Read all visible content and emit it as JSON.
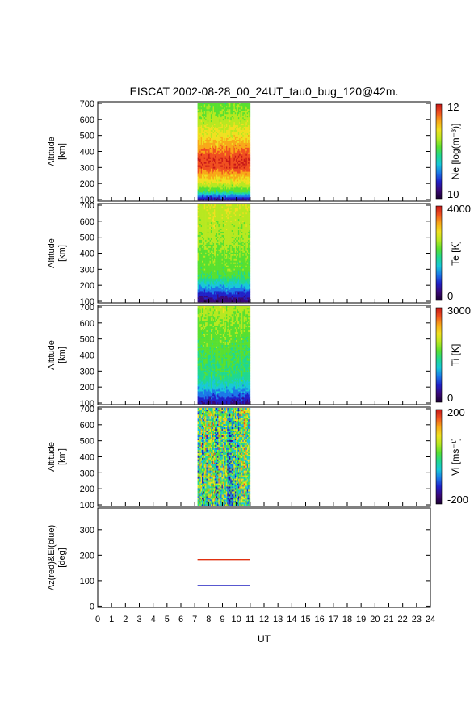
{
  "title": "EISCAT 2002-08-28_00_24UT_tau0_bug_120@42m.",
  "xaxis": {
    "label": "UT",
    "ticks": [
      "0",
      "1",
      "2",
      "3",
      "4",
      "5",
      "6",
      "7",
      "8",
      "9",
      "10",
      "11",
      "12",
      "13",
      "14",
      "15",
      "16",
      "17",
      "18",
      "19",
      "20",
      "21",
      "22",
      "23",
      "24"
    ],
    "range": [
      0,
      24
    ]
  },
  "chart_data": [
    {
      "type": "heatmap",
      "ylabel_line1": "Altitude",
      "ylabel_line2": "[km]",
      "yticks": [
        "100",
        "200",
        "300",
        "400",
        "500",
        "600",
        "700"
      ],
      "ylim": [
        90,
        710
      ],
      "data_x_range": [
        7.2,
        11.0
      ],
      "colorbar_label": "Ne [log(m⁻³)]",
      "colorbar_min": "10",
      "colorbar_max": "12",
      "colorbar_range": [
        10,
        12
      ],
      "profile": [
        {
          "alt": 100,
          "value": 10.2
        },
        {
          "alt": 150,
          "value": 11.0
        },
        {
          "alt": 200,
          "value": 11.35
        },
        {
          "alt": 250,
          "value": 11.6
        },
        {
          "alt": 300,
          "value": 11.85
        },
        {
          "alt": 350,
          "value": 11.9
        },
        {
          "alt": 400,
          "value": 11.75
        },
        {
          "alt": 500,
          "value": 11.45
        },
        {
          "alt": 600,
          "value": 11.25
        },
        {
          "alt": 700,
          "value": 11.1
        }
      ]
    },
    {
      "type": "heatmap",
      "ylabel_line1": "Altitude",
      "ylabel_line2": "[km]",
      "yticks": [
        "100",
        "200",
        "300",
        "400",
        "500",
        "600",
        "700"
      ],
      "ylim": [
        90,
        710
      ],
      "data_x_range": [
        7.2,
        11.0
      ],
      "colorbar_label": "Te [K]",
      "colorbar_min": "0",
      "colorbar_max": "4000",
      "colorbar_range": [
        0,
        4000
      ],
      "profile": [
        {
          "alt": 100,
          "value": 300
        },
        {
          "alt": 150,
          "value": 800
        },
        {
          "alt": 200,
          "value": 1400
        },
        {
          "alt": 250,
          "value": 2000
        },
        {
          "alt": 300,
          "value": 2200
        },
        {
          "alt": 400,
          "value": 2300
        },
        {
          "alt": 500,
          "value": 2450
        },
        {
          "alt": 600,
          "value": 2550
        },
        {
          "alt": 700,
          "value": 2650
        }
      ]
    },
    {
      "type": "heatmap",
      "ylabel_line1": "Altitude",
      "ylabel_line2": "[km]",
      "yticks": [
        "100",
        "200",
        "300",
        "400",
        "500",
        "600",
        "700"
      ],
      "ylim": [
        90,
        710
      ],
      "data_x_range": [
        7.2,
        11.0
      ],
      "colorbar_label": "Ti [K]",
      "colorbar_min": "0",
      "colorbar_max": "3000",
      "colorbar_range": [
        0,
        3000
      ],
      "profile": [
        {
          "alt": 100,
          "value": 350
        },
        {
          "alt": 150,
          "value": 750
        },
        {
          "alt": 200,
          "value": 1100
        },
        {
          "alt": 250,
          "value": 1350
        },
        {
          "alt": 300,
          "value": 1450
        },
        {
          "alt": 400,
          "value": 1550
        },
        {
          "alt": 500,
          "value": 1650
        },
        {
          "alt": 600,
          "value": 1750
        },
        {
          "alt": 700,
          "value": 1900
        }
      ]
    },
    {
      "type": "heatmap",
      "ylabel_line1": "Altitude",
      "ylabel_line2": "[km]",
      "yticks": [
        "100",
        "200",
        "300",
        "400",
        "500",
        "600",
        "700"
      ],
      "ylim": [
        90,
        710
      ],
      "data_x_range": [
        7.2,
        11.0
      ],
      "colorbar_label": "Vi [ms⁻¹]",
      "colorbar_min": "-200",
      "colorbar_max": "200",
      "colorbar_range": [
        -200,
        200
      ],
      "profile": [
        {
          "alt": 100,
          "value": -20
        },
        {
          "alt": 200,
          "value": 0
        },
        {
          "alt": 400,
          "value": 0
        },
        {
          "alt": 700,
          "value": 10
        }
      ]
    },
    {
      "type": "line",
      "ylabel_line1": "Az(red)&El(blue)",
      "ylabel_line2": "[deg]",
      "yticks": [
        "0",
        "100",
        "200",
        "300"
      ],
      "ylim": [
        -5,
        385
      ],
      "series": [
        {
          "color": "#e03010",
          "x": [
            7.2,
            11.0
          ],
          "y": [
            183,
            183
          ]
        },
        {
          "color": "#2020c0",
          "x": [
            7.2,
            11.0
          ],
          "y": [
            81,
            81
          ]
        }
      ]
    }
  ],
  "colorscale": [
    "#1a0030",
    "#3a0878",
    "#2020c8",
    "#1a78e8",
    "#18c8d8",
    "#20d890",
    "#58e030",
    "#b8e820",
    "#f0e020",
    "#f8a818",
    "#f05020",
    "#c81818"
  ]
}
